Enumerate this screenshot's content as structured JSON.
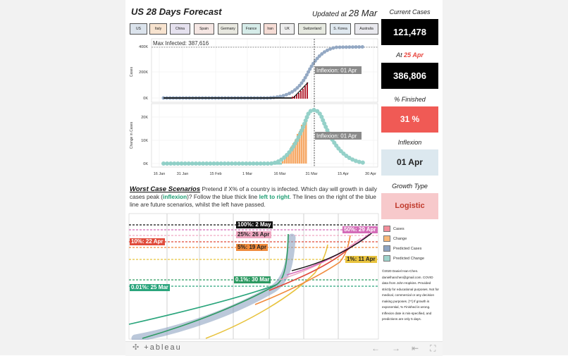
{
  "header": {
    "title": "US 28 Days Forecast",
    "updated_prefix": "Updated at",
    "updated_date": "28 Mar"
  },
  "country_tabs": [
    {
      "label": "US",
      "color": "#dbe3ec"
    },
    {
      "label": "Italy",
      "color": "#f7e3cf"
    },
    {
      "label": "China",
      "color": "#e5e1ee"
    },
    {
      "label": "Spain",
      "color": "#f5e6e3"
    },
    {
      "label": "Germany",
      "color": "#e8e8e0"
    },
    {
      "label": "France",
      "color": "#d6ece9"
    },
    {
      "label": "Iran",
      "color": "#f5dcd5"
    },
    {
      "label": "UK",
      "color": "#eeeeee"
    },
    {
      "label": "Switzerland",
      "color": "#e6e9e0"
    },
    {
      "label": "S. Korea",
      "color": "#dfe8ef"
    },
    {
      "label": "Australia",
      "color": "#e9e9ee"
    }
  ],
  "chart_top": {
    "ylabel": "Cases",
    "y_ticks": [
      "400K",
      "200K",
      "0K"
    ],
    "max_label": "Max Infected: 387,616",
    "inflexion_label": "Inflexion: 01 Apr"
  },
  "chart_bottom": {
    "ylabel": "Change in Cases",
    "y_ticks": [
      "20K",
      "10K",
      "0K"
    ],
    "inflexion_label": "Inflexion: 01 Apr"
  },
  "x_ticks": [
    "16 Jan",
    "31 Jan",
    "15 Feb",
    "1 Mar",
    "16 Mar",
    "31 Mar",
    "15 Apr",
    "30 Apr"
  ],
  "sidebar": {
    "current_cases_label": "Current Cases",
    "current_cases_value": "121,478",
    "at_label": "At",
    "at_date": "25 Apr",
    "at_value": "386,806",
    "finished_label": "% Finished",
    "finished_value": "31 %",
    "inflexion_label": "Inflexion",
    "inflexion_value": "01 Apr",
    "growth_label": "Growth Type",
    "growth_value": "Logistic"
  },
  "worst_case": {
    "heading": "Worst Case Scenarios",
    "t1": " Pretend if X% of a country is infected. Which day will growth in daily cases peak (",
    "hl1": "inflexion",
    "t2": ")? Follow the blue thick line ",
    "hl2": "left to right",
    "t3": ". The lines on the right of the blue line are future scenarios, whilst the left have passed."
  },
  "scenarios": [
    {
      "label": "100%: 2 May",
      "bg": "#111111",
      "fg": "#ffffff",
      "line": "#111111"
    },
    {
      "label": "50%: 29 Apr",
      "bg": "#d46bb8",
      "fg": "#ffffff",
      "line": "#d46bb8"
    },
    {
      "label": "25%: 26 Apr",
      "bg": "#f0a9c2",
      "fg": "#222222",
      "line": "#f0a9c2"
    },
    {
      "label": "10%: 22 Apr",
      "bg": "#e04b3b",
      "fg": "#ffffff",
      "line": "#e04b3b"
    },
    {
      "label": "5%: 19 Apr",
      "bg": "#f08a3c",
      "fg": "#222222",
      "line": "#f08a3c"
    },
    {
      "label": "1%: 11 Apr",
      "bg": "#e8c33e",
      "fg": "#222222",
      "line": "#e8c33e"
    },
    {
      "label": "0.1%: 30 Mar",
      "bg": "#2d9a62",
      "fg": "#ffffff",
      "line": "#2d9a62"
    },
    {
      "label": "0.01%: 25 Mar",
      "bg": "#2aa57c",
      "fg": "#ffffff",
      "line": "#2aa57c"
    }
  ],
  "legend": [
    {
      "label": "Cases",
      "color": "#f28e9b"
    },
    {
      "label": "Change",
      "color": "#f8b878"
    },
    {
      "label": "Predicted Cases",
      "color": "#8ea4c1"
    },
    {
      "label": "Predicted Change",
      "color": "#9fd4cc"
    }
  ],
  "credits": {
    "text": "©2020 Daniel Han-Chen. danielhanchen@gmail.com. COVID data from John Hopkins. Provided strictly for educational purposes. Not for medical, commercial or any decision making purposes.",
    "warn": "[**] If growth is exponential, % Finished is wrong. Inflexion date is mis-specified, and predictions are only 5 days."
  },
  "footer": {
    "brand": "+ableau"
  },
  "colors": {
    "cases_red": "#b32434",
    "change_orange": "#f6a967",
    "predicted_blue": "#8ea4c1",
    "predicted_teal": "#8fcfc6",
    "finished_red": "#f05a55",
    "growth_pink": "#f7c9cb",
    "inflexion_box": "#dce8ef",
    "accent_red": "#e8443c",
    "accent_green": "#1f9e73"
  }
}
